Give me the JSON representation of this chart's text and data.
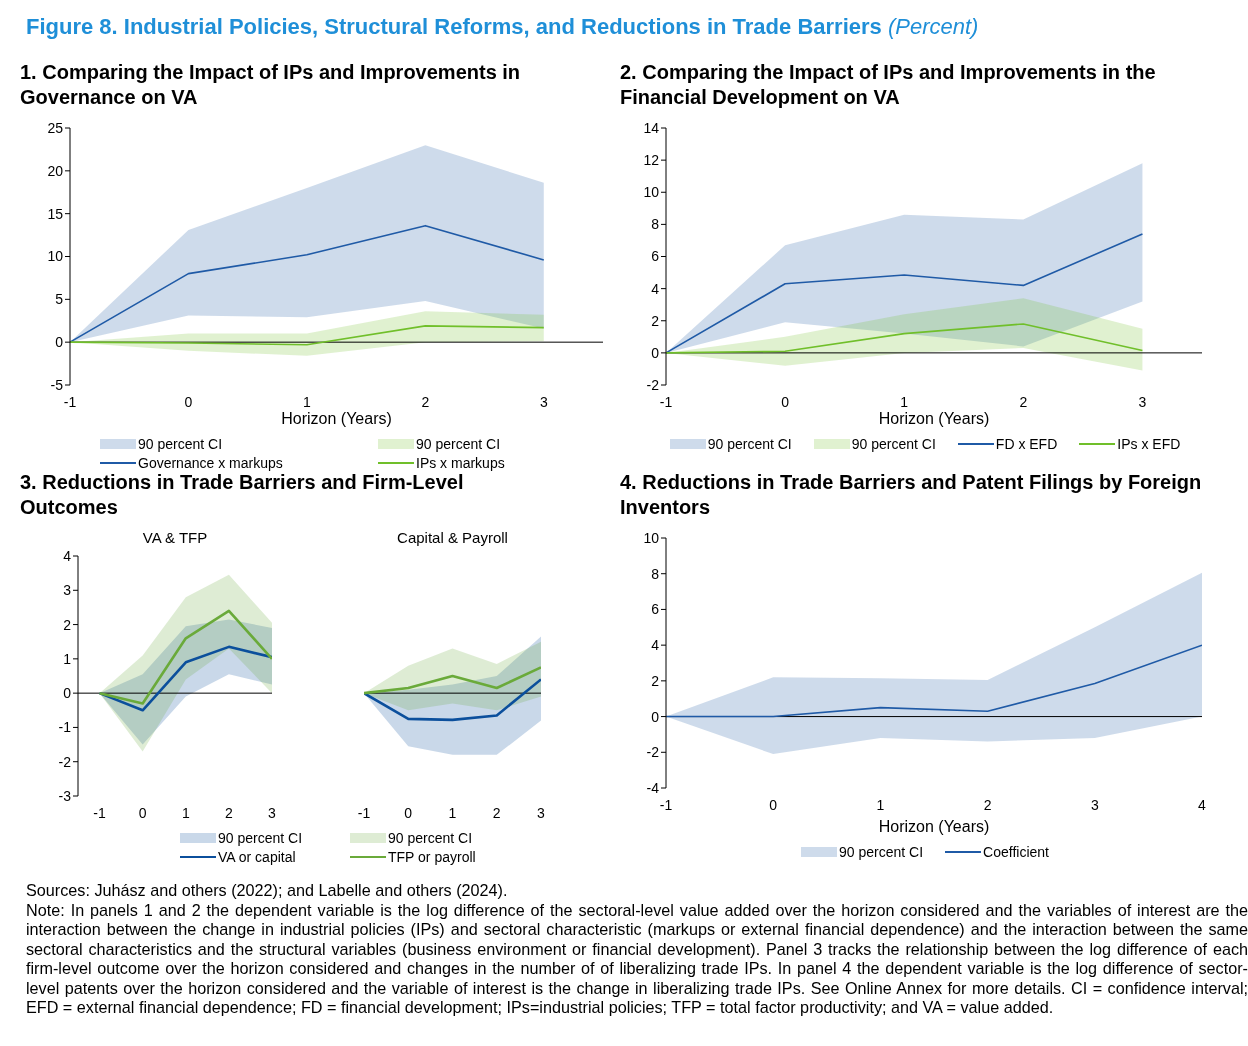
{
  "chart_data": [
    {
      "type": "other",
      "title": "Figure 8. Industrial Policies, Structural Reforms, and Reductions in Trade Barriers",
      "subtitle": "(Percent)",
      "annotations": [
        "Sources: Juhász and others (2022); and Labelle and others (2024).",
        "Note: In panels 1 and 2 the dependent variable is the log difference of the sectoral-level value added over the horizon considered and the variables of interest are the interaction between the change in industrial policies (IPs) and sectoral characteristic (markups or external financial dependence) and the interaction between the same sectoral characteristics and the structural variables (business environment or financial development). Panel 3 tracks the relationship between the log difference of each firm-level outcome over the horizon considered and changes in the number of of liberalizing trade IPs. In panel 4 the dependent variable is the log difference of sector-level patents over the horizon considered and the variable of interest is the change in liberalizing trade IPs. See Online Annex for more details. CI = confidence interval; EFD = external financial dependence; FD = financial development; IPs=industrial policies; TFP = total factor productivity; and VA = value added."
      ]
    },
    {
      "type": "line",
      "title": "1. Comparing the Impact of IPs and Improvements in Governance on VA",
      "xlabel": "Horizon (Years)",
      "x": [
        -1,
        0,
        1,
        2,
        3
      ],
      "xlim": [
        -1,
        3.5
      ],
      "xticks": [
        -1,
        0,
        1,
        2,
        3
      ],
      "ylim": [
        -5,
        25
      ],
      "yticks": [
        -5,
        0,
        5,
        10,
        15,
        20,
        25
      ],
      "legend": "bottom",
      "annotations": [
        "90 percent CI",
        "90 percent CI"
      ],
      "ref_lines": [
        {
          "axis": "y",
          "value": 0,
          "color": "#000000"
        }
      ],
      "series": [
        {
          "name": "Governance x markups",
          "color": "#1f5aa6",
          "values": [
            0,
            8,
            10.2,
            13.6,
            9.6
          ],
          "lower": [
            0,
            3.1,
            2.9,
            4.8,
            1.6
          ],
          "upper": [
            0,
            13.1,
            18,
            23,
            18.6
          ]
        },
        {
          "name": "IPs x markups",
          "color": "#70bf2a",
          "values": [
            0,
            -0.1,
            -0.3,
            1.9,
            1.7
          ],
          "lower": [
            0,
            -1,
            -1.6,
            0,
            0.1
          ],
          "upper": [
            0,
            1,
            1,
            3.6,
            3.2
          ]
        }
      ]
    },
    {
      "type": "line",
      "title": "2. Comparing the Impact of IPs and Improvements in the Financial Development on VA",
      "xlabel": "Horizon (Years)",
      "x": [
        -1,
        0,
        1,
        2,
        3
      ],
      "xlim": [
        -1,
        3.5
      ],
      "xticks": [
        -1,
        0,
        1,
        2,
        3
      ],
      "ylim": [
        -2,
        14
      ],
      "yticks": [
        -2,
        0,
        2,
        4,
        6,
        8,
        10,
        12,
        14
      ],
      "legend": "bottom",
      "annotations": [
        "90 percent CI",
        "90 percent CI"
      ],
      "ref_lines": [
        {
          "axis": "y",
          "value": 0,
          "color": "#000000"
        }
      ],
      "series": [
        {
          "name": "FD x EFD",
          "color": "#1f5aa6",
          "values": [
            0,
            4.3,
            4.85,
            4.2,
            7.4
          ],
          "lower": [
            0,
            1.9,
            1.2,
            0.4,
            3.2
          ],
          "upper": [
            0,
            6.7,
            8.6,
            8.3,
            11.8
          ]
        },
        {
          "name": "IPs x EFD",
          "color": "#70bf2a",
          "values": [
            0,
            0.1,
            1.2,
            1.8,
            0.15
          ],
          "lower": [
            0,
            -0.8,
            0,
            0.3,
            -1.1
          ],
          "upper": [
            0,
            1,
            2.4,
            3.4,
            1.5
          ]
        }
      ]
    },
    {
      "type": "line",
      "title": "3. Reductions in Trade Barriers and Firm-Level Outcomes",
      "subtitle": "VA & TFP",
      "x": [
        -1,
        0,
        1,
        2,
        3
      ],
      "xlim": [
        -1.5,
        3
      ],
      "xticks": [
        -1,
        0,
        1,
        2,
        3
      ],
      "ylim": [
        -3,
        4
      ],
      "yticks": [
        -3,
        -2,
        -1,
        0,
        1,
        2,
        3,
        4
      ],
      "legend": "bottom",
      "annotations": [
        "90 percent CI"
      ],
      "ref_lines": [
        {
          "axis": "y",
          "value": 0,
          "color": "#000000"
        }
      ],
      "series": [
        {
          "name": "VA or capital",
          "color": "#0b4f9c",
          "values": [
            0,
            -0.5,
            0.9,
            1.35,
            1.05
          ],
          "lower": [
            0,
            -1.5,
            -0.1,
            0.55,
            0.25
          ],
          "upper": [
            0,
            0.55,
            1.95,
            2.15,
            1.9
          ]
        },
        {
          "color": "#6aaa3a",
          "values": [
            0,
            -0.3,
            1.6,
            2.4,
            1
          ],
          "lower": [
            0,
            -1.7,
            0.4,
            1.3,
            0
          ],
          "upper": [
            0,
            1.1,
            2.8,
            3.45,
            2.05
          ]
        }
      ]
    },
    {
      "type": "line",
      "title": "Capital & Payroll",
      "x": [
        -1,
        0,
        1,
        2,
        3
      ],
      "xlim": [
        -1,
        3
      ],
      "xticks": [
        -1,
        0,
        1,
        2,
        3
      ],
      "ylim": [
        -3,
        4
      ],
      "tick_labels": "x",
      "legend": "bottom",
      "annotations": [
        "90 percent CI"
      ],
      "ref_lines": [
        {
          "axis": "y",
          "value": 0,
          "color": "#000000"
        }
      ],
      "series": [
        {
          "color": "#0b4f9c",
          "values": [
            0,
            -0.75,
            -0.78,
            -0.65,
            0.4
          ],
          "lower": [
            0,
            -1.55,
            -1.8,
            -1.8,
            -0.8
          ],
          "upper": [
            0,
            0.1,
            0.25,
            0.5,
            1.65
          ]
        },
        {
          "name": "TFP or payroll",
          "color": "#6aaa3a",
          "values": [
            0,
            0.15,
            0.5,
            0.15,
            0.75
          ],
          "lower": [
            0,
            -0.5,
            -0.3,
            -0.5,
            -0.1
          ],
          "upper": [
            0,
            0.8,
            1.3,
            0.85,
            1.5
          ]
        }
      ]
    },
    {
      "type": "line",
      "title": "4. Reductions in Trade Barriers and Patent Filings by Foreign Inventors",
      "xlabel": "Horizon (Years)",
      "x": [
        -1,
        0,
        1,
        2,
        3,
        4
      ],
      "xlim": [
        -1,
        4
      ],
      "xticks": [
        -1,
        0,
        1,
        2,
        3,
        4
      ],
      "ylim": [
        -4,
        10
      ],
      "yticks": [
        -4,
        -2,
        0,
        2,
        4,
        6,
        8,
        10
      ],
      "legend": "bottom",
      "annotations": [
        "90 percent CI"
      ],
      "ref_lines": [
        {
          "axis": "y",
          "value": 0,
          "color": "#000000"
        }
      ],
      "series": [
        {
          "name": "Coefficient",
          "color": "#1f5aa6",
          "values": [
            0,
            0,
            0.5,
            0.3,
            1.85,
            4
          ],
          "lower": [
            0,
            -2.1,
            -1.2,
            -1.4,
            -1.2,
            0
          ],
          "upper": [
            0,
            2.2,
            2.15,
            2.05,
            5,
            8.05
          ]
        }
      ]
    }
  ]
}
